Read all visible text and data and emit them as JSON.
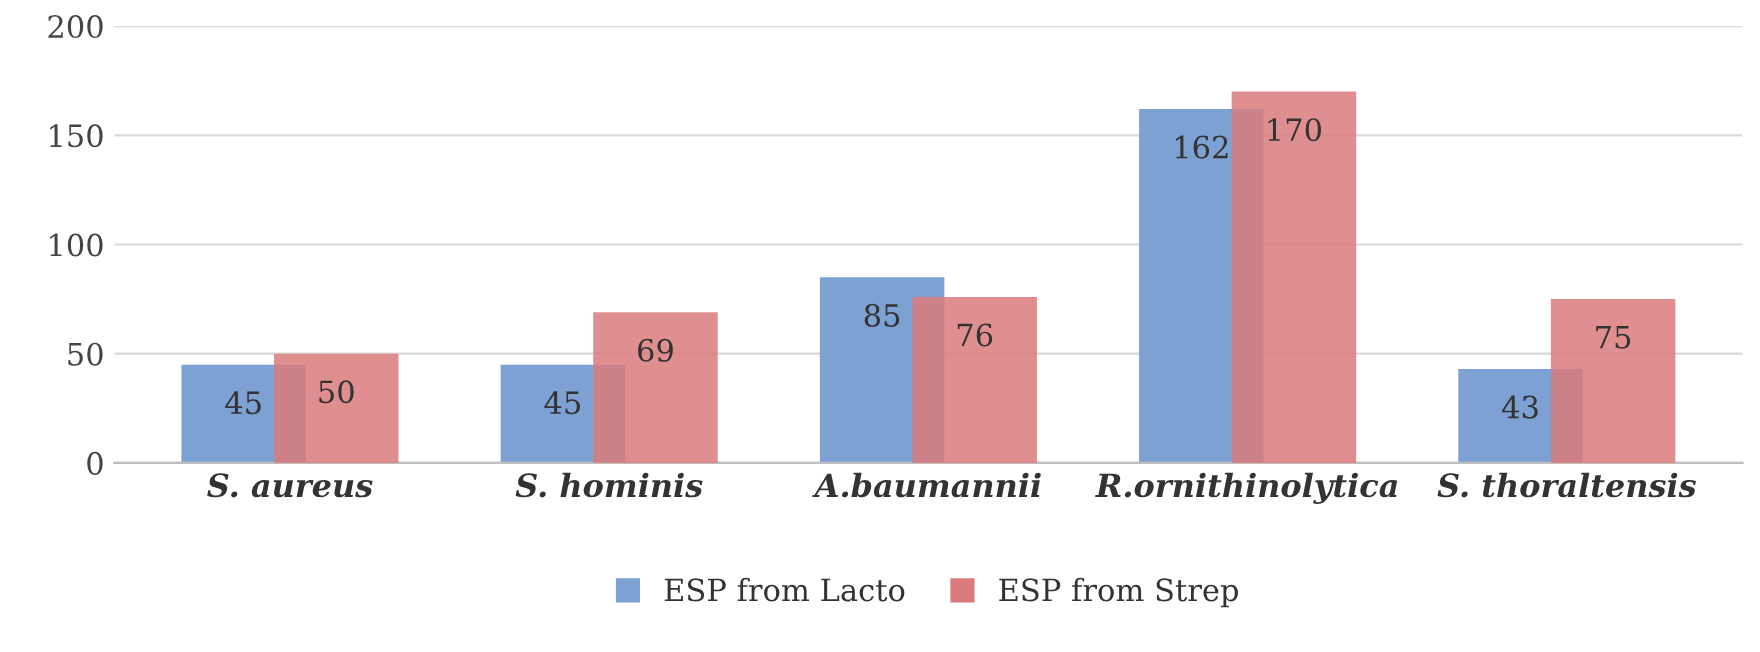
{
  "chart_data": {
    "type": "bar",
    "categories": [
      "S. aureus",
      "S. hominis",
      "A.baumannii",
      "R.ornithinolytica",
      "S. thoraltensis"
    ],
    "series": [
      {
        "name": "ESP from Lacto",
        "color": "#7da1d3",
        "values": [
          45,
          45,
          85,
          162,
          43
        ]
      },
      {
        "name": "ESP from Strep",
        "color": "#d97b7b",
        "values": [
          50,
          69,
          76,
          170,
          75
        ]
      }
    ],
    "ylim": [
      0,
      200
    ],
    "yticks": [
      0,
      50,
      100,
      150,
      200
    ],
    "grid": "y",
    "legend": "bottom",
    "data_labels": true
  }
}
